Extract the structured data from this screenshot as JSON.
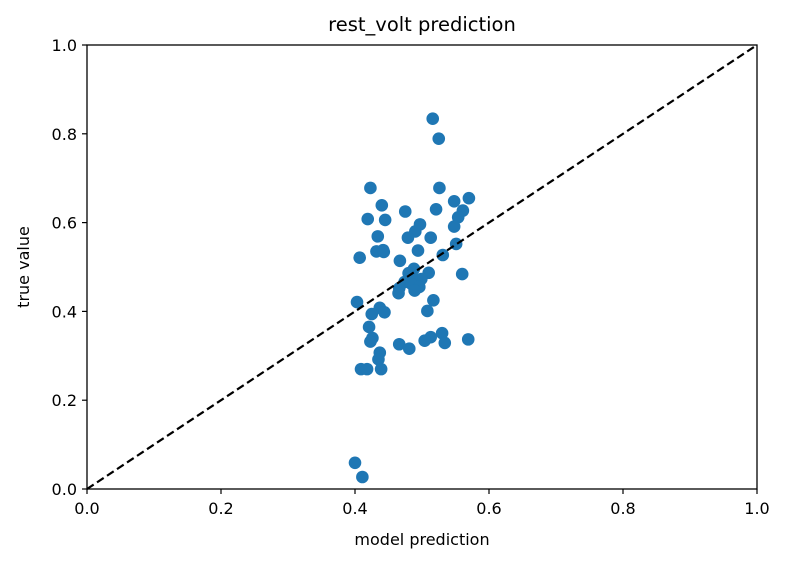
{
  "chart_data": {
    "type": "scatter",
    "title": "rest_volt prediction",
    "xlabel": "model prediction",
    "ylabel": "true value",
    "xlim": [
      0.0,
      1.0
    ],
    "ylim": [
      0.0,
      1.0
    ],
    "xticks": [
      "0.0",
      "0.2",
      "0.4",
      "0.6",
      "0.8",
      "1.0"
    ],
    "yticks": [
      "0.0",
      "0.2",
      "0.4",
      "0.6",
      "0.8",
      "1.0"
    ],
    "grid": false,
    "reference_line": {
      "style": "dashed",
      "color": "#000000",
      "from": [
        0,
        0
      ],
      "to": [
        1,
        1
      ]
    },
    "point_color": "#1f77b4",
    "points": [
      [
        0.516,
        0.834
      ],
      [
        0.525,
        0.789
      ],
      [
        0.423,
        0.678
      ],
      [
        0.526,
        0.678
      ],
      [
        0.548,
        0.648
      ],
      [
        0.57,
        0.655
      ],
      [
        0.44,
        0.639
      ],
      [
        0.561,
        0.627
      ],
      [
        0.521,
        0.63
      ],
      [
        0.475,
        0.625
      ],
      [
        0.419,
        0.608
      ],
      [
        0.445,
        0.606
      ],
      [
        0.554,
        0.612
      ],
      [
        0.497,
        0.596
      ],
      [
        0.548,
        0.591
      ],
      [
        0.434,
        0.569
      ],
      [
        0.49,
        0.58
      ],
      [
        0.479,
        0.566
      ],
      [
        0.513,
        0.566
      ],
      [
        0.551,
        0.552
      ],
      [
        0.432,
        0.535
      ],
      [
        0.442,
        0.538
      ],
      [
        0.443,
        0.534
      ],
      [
        0.494,
        0.537
      ],
      [
        0.531,
        0.527
      ],
      [
        0.407,
        0.521
      ],
      [
        0.467,
        0.514
      ],
      [
        0.488,
        0.496
      ],
      [
        0.48,
        0.486
      ],
      [
        0.51,
        0.487
      ],
      [
        0.56,
        0.484
      ],
      [
        0.499,
        0.473
      ],
      [
        0.474,
        0.466
      ],
      [
        0.492,
        0.471
      ],
      [
        0.485,
        0.461
      ],
      [
        0.466,
        0.452
      ],
      [
        0.496,
        0.455
      ],
      [
        0.489,
        0.447
      ],
      [
        0.465,
        0.441
      ],
      [
        0.403,
        0.421
      ],
      [
        0.517,
        0.425
      ],
      [
        0.437,
        0.408
      ],
      [
        0.425,
        0.394
      ],
      [
        0.444,
        0.398
      ],
      [
        0.508,
        0.401
      ],
      [
        0.421,
        0.365
      ],
      [
        0.53,
        0.351
      ],
      [
        0.513,
        0.342
      ],
      [
        0.426,
        0.34
      ],
      [
        0.423,
        0.332
      ],
      [
        0.504,
        0.334
      ],
      [
        0.569,
        0.337
      ],
      [
        0.534,
        0.329
      ],
      [
        0.466,
        0.326
      ],
      [
        0.481,
        0.316
      ],
      [
        0.437,
        0.307
      ],
      [
        0.435,
        0.292
      ],
      [
        0.409,
        0.27
      ],
      [
        0.418,
        0.27
      ],
      [
        0.439,
        0.27
      ],
      [
        0.4,
        0.059
      ],
      [
        0.411,
        0.027
      ]
    ]
  }
}
